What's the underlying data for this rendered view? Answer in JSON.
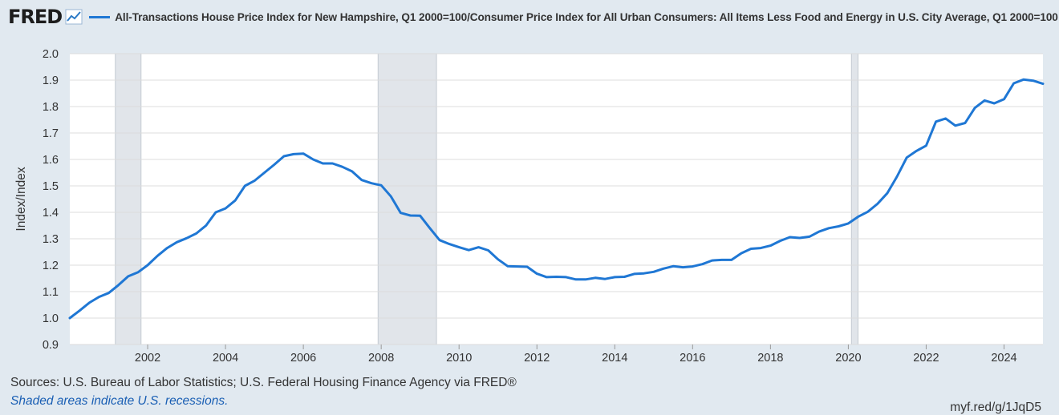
{
  "header": {
    "logo": "FRED",
    "title": "All-Transactions House Price Index for New Hampshire, Q1 2000=100/Consumer Price Index for All Urban Consumers: All Items Less Food and Energy in U.S. City Average, Q1 2000=100"
  },
  "footer": {
    "sources": "Sources: U.S. Bureau of Labor Statistics; U.S. Federal Housing Finance Agency via FRED®",
    "shade_note": "Shaded areas indicate U.S. recessions.",
    "short_url": "myf.red/g/1JqD5"
  },
  "colors": {
    "series": "#1f77d4",
    "recession": "#e1e5ea",
    "grid": "#dcdcdc",
    "background": "#e1e9f0"
  },
  "chart_data": {
    "type": "line",
    "ylabel": "Index/Index",
    "xlabel": "",
    "ylim": [
      0.9,
      2.0
    ],
    "xlim": [
      2000.0,
      2025.0
    ],
    "yticks": [
      "0.9",
      "1.0",
      "1.1",
      "1.2",
      "1.3",
      "1.4",
      "1.5",
      "1.6",
      "1.7",
      "1.8",
      "1.9",
      "2.0"
    ],
    "xticks": [
      "2002",
      "2004",
      "2006",
      "2008",
      "2010",
      "2012",
      "2014",
      "2016",
      "2018",
      "2020",
      "2022",
      "2024"
    ],
    "recessions": [
      [
        2001.17,
        2001.83
      ],
      [
        2007.92,
        2009.42
      ],
      [
        2020.08,
        2020.25
      ]
    ],
    "series": [
      {
        "name": "All-Transactions House Price Index for New Hampshire / CPI Less Food and Energy",
        "x": [
          2000.0,
          2000.25,
          2000.5,
          2000.75,
          2001.0,
          2001.25,
          2001.5,
          2001.75,
          2002.0,
          2002.25,
          2002.5,
          2002.75,
          2003.0,
          2003.25,
          2003.5,
          2003.75,
          2004.0,
          2004.25,
          2004.5,
          2004.75,
          2005.0,
          2005.25,
          2005.5,
          2005.75,
          2006.0,
          2006.25,
          2006.5,
          2006.75,
          2007.0,
          2007.25,
          2007.5,
          2007.75,
          2008.0,
          2008.25,
          2008.5,
          2008.75,
          2009.0,
          2009.25,
          2009.5,
          2009.75,
          2010.0,
          2010.25,
          2010.5,
          2010.75,
          2011.0,
          2011.25,
          2011.5,
          2011.75,
          2012.0,
          2012.25,
          2012.5,
          2012.75,
          2013.0,
          2013.25,
          2013.5,
          2013.75,
          2014.0,
          2014.25,
          2014.5,
          2014.75,
          2015.0,
          2015.25,
          2015.5,
          2015.75,
          2016.0,
          2016.25,
          2016.5,
          2016.75,
          2017.0,
          2017.25,
          2017.5,
          2017.75,
          2018.0,
          2018.25,
          2018.5,
          2018.75,
          2019.0,
          2019.25,
          2019.5,
          2019.75,
          2020.0,
          2020.25,
          2020.5,
          2020.75,
          2021.0,
          2021.25,
          2021.5,
          2021.75,
          2022.0,
          2022.25,
          2022.5,
          2022.75,
          2023.0,
          2023.25,
          2023.5,
          2023.75,
          2024.0,
          2024.25,
          2024.5,
          2024.75,
          2025.0
        ],
        "values": [
          1.0,
          1.028,
          1.058,
          1.08,
          1.095,
          1.125,
          1.158,
          1.173,
          1.2,
          1.235,
          1.265,
          1.287,
          1.302,
          1.32,
          1.35,
          1.4,
          1.415,
          1.445,
          1.5,
          1.52,
          1.55,
          1.58,
          1.612,
          1.62,
          1.622,
          1.6,
          1.585,
          1.585,
          1.572,
          1.555,
          1.522,
          1.51,
          1.502,
          1.46,
          1.398,
          1.388,
          1.387,
          1.34,
          1.295,
          1.28,
          1.268,
          1.257,
          1.268,
          1.256,
          1.222,
          1.196,
          1.195,
          1.194,
          1.168,
          1.155,
          1.156,
          1.155,
          1.146,
          1.146,
          1.152,
          1.148,
          1.155,
          1.156,
          1.167,
          1.169,
          1.175,
          1.187,
          1.196,
          1.192,
          1.195,
          1.204,
          1.218,
          1.22,
          1.22,
          1.245,
          1.262,
          1.265,
          1.274,
          1.292,
          1.306,
          1.303,
          1.308,
          1.327,
          1.34,
          1.347,
          1.358,
          1.383,
          1.402,
          1.432,
          1.472,
          1.535,
          1.607,
          1.632,
          1.652,
          1.743,
          1.755,
          1.728,
          1.738,
          1.795,
          1.823,
          1.812,
          1.828,
          1.888,
          1.902,
          1.898,
          1.886
        ]
      }
    ]
  }
}
